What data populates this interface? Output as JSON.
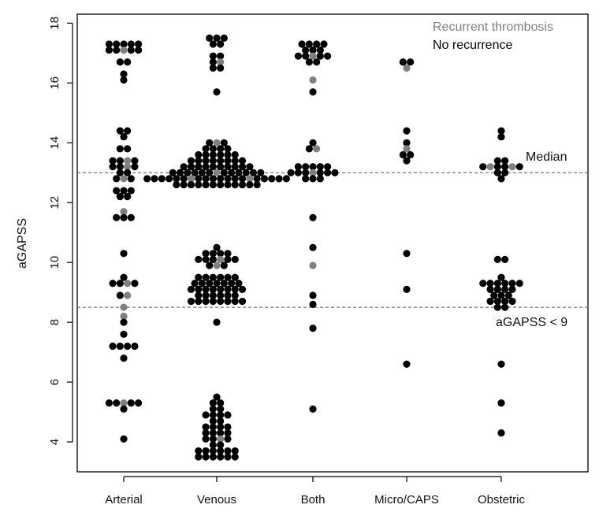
{
  "chart_data": {
    "type": "scatter",
    "subtype": "beeswarm",
    "ylabel": "aGAPSS",
    "xlabel": "",
    "ylim": [
      3,
      18.3
    ],
    "yticks": [
      4,
      6,
      8,
      10,
      12,
      14,
      16,
      18
    ],
    "categories": [
      "Arterial",
      "Venous",
      "Both",
      "Micro/CAPS",
      "Obstetric"
    ],
    "legend": {
      "position": "top-right",
      "entries": [
        {
          "label": "Recurrent thrombosis",
          "color": "#808080"
        },
        {
          "label": "No recurrence",
          "color": "#000000"
        }
      ]
    },
    "reference_lines": [
      {
        "y": 13.0,
        "label": "Median",
        "style": "dashed"
      },
      {
        "y": 8.5,
        "label": "aGAPSS < 9",
        "style": "dashed"
      }
    ],
    "series": [
      {
        "name": "Arterial",
        "points": [
          {
            "y": 17.3,
            "n_black": 5,
            "n_gray": 0
          },
          {
            "y": 17.1,
            "n_black": 4,
            "n_gray": 1
          },
          {
            "y": 16.7,
            "n_black": 2,
            "n_gray": 0
          },
          {
            "y": 16.3,
            "n_black": 1,
            "n_gray": 0
          },
          {
            "y": 16.1,
            "n_black": 1,
            "n_gray": 0
          },
          {
            "y": 14.4,
            "n_black": 2,
            "n_gray": 0
          },
          {
            "y": 14.2,
            "n_black": 1,
            "n_gray": 0
          },
          {
            "y": 13.8,
            "n_black": 2,
            "n_gray": 0
          },
          {
            "y": 13.4,
            "n_black": 3,
            "n_gray": 1
          },
          {
            "y": 13.2,
            "n_black": 3,
            "n_gray": 1
          },
          {
            "y": 13.0,
            "n_black": 2,
            "n_gray": 0
          },
          {
            "y": 12.8,
            "n_black": 2,
            "n_gray": 1
          },
          {
            "y": 12.4,
            "n_black": 3,
            "n_gray": 0
          },
          {
            "y": 12.2,
            "n_black": 2,
            "n_gray": 0
          },
          {
            "y": 11.7,
            "n_black": 0,
            "n_gray": 1
          },
          {
            "y": 11.5,
            "n_black": 3,
            "n_gray": 0
          },
          {
            "y": 10.3,
            "n_black": 1,
            "n_gray": 0
          },
          {
            "y": 9.5,
            "n_black": 1,
            "n_gray": 0
          },
          {
            "y": 9.3,
            "n_black": 3,
            "n_gray": 1
          },
          {
            "y": 8.9,
            "n_black": 1,
            "n_gray": 1
          },
          {
            "y": 8.5,
            "n_black": 0,
            "n_gray": 1
          },
          {
            "y": 8.2,
            "n_black": 0,
            "n_gray": 1
          },
          {
            "y": 8.0,
            "n_black": 1,
            "n_gray": 0
          },
          {
            "y": 7.6,
            "n_black": 1,
            "n_gray": 0
          },
          {
            "y": 7.2,
            "n_black": 4,
            "n_gray": 0
          },
          {
            "y": 6.8,
            "n_black": 1,
            "n_gray": 0
          },
          {
            "y": 5.3,
            "n_black": 4,
            "n_gray": 1
          },
          {
            "y": 5.1,
            "n_black": 1,
            "n_gray": 0
          },
          {
            "y": 4.1,
            "n_black": 1,
            "n_gray": 0
          }
        ]
      },
      {
        "name": "Venous",
        "points": [
          {
            "y": 17.5,
            "n_black": 3,
            "n_gray": 0
          },
          {
            "y": 17.3,
            "n_black": 2,
            "n_gray": 0
          },
          {
            "y": 16.9,
            "n_black": 2,
            "n_gray": 0
          },
          {
            "y": 16.7,
            "n_black": 1,
            "n_gray": 1
          },
          {
            "y": 16.5,
            "n_black": 2,
            "n_gray": 0
          },
          {
            "y": 15.7,
            "n_black": 1,
            "n_gray": 0
          },
          {
            "y": 14.0,
            "n_black": 2,
            "n_gray": 1
          },
          {
            "y": 13.8,
            "n_black": 4,
            "n_gray": 0
          },
          {
            "y": 13.6,
            "n_black": 6,
            "n_gray": 0
          },
          {
            "y": 13.4,
            "n_black": 8,
            "n_gray": 0
          },
          {
            "y": 13.2,
            "n_black": 10,
            "n_gray": 0
          },
          {
            "y": 13.0,
            "n_black": 12,
            "n_gray": 1
          },
          {
            "y": 12.8,
            "n_black": 18,
            "n_gray": 2
          },
          {
            "y": 12.6,
            "n_black": 12,
            "n_gray": 0
          },
          {
            "y": 10.5,
            "n_black": 1,
            "n_gray": 0
          },
          {
            "y": 10.3,
            "n_black": 4,
            "n_gray": 0
          },
          {
            "y": 10.1,
            "n_black": 5,
            "n_gray": 1
          },
          {
            "y": 9.9,
            "n_black": 2,
            "n_gray": 1
          },
          {
            "y": 9.5,
            "n_black": 6,
            "n_gray": 0
          },
          {
            "y": 9.3,
            "n_black": 7,
            "n_gray": 0
          },
          {
            "y": 9.1,
            "n_black": 8,
            "n_gray": 0
          },
          {
            "y": 8.9,
            "n_black": 6,
            "n_gray": 0
          },
          {
            "y": 8.7,
            "n_black": 8,
            "n_gray": 0
          },
          {
            "y": 8.0,
            "n_black": 1,
            "n_gray": 0
          },
          {
            "y": 5.5,
            "n_black": 1,
            "n_gray": 0
          },
          {
            "y": 5.3,
            "n_black": 2,
            "n_gray": 0
          },
          {
            "y": 5.1,
            "n_black": 2,
            "n_gray": 0
          },
          {
            "y": 4.9,
            "n_black": 4,
            "n_gray": 0
          },
          {
            "y": 4.7,
            "n_black": 2,
            "n_gray": 0
          },
          {
            "y": 4.5,
            "n_black": 4,
            "n_gray": 0
          },
          {
            "y": 4.3,
            "n_black": 4,
            "n_gray": 0
          },
          {
            "y": 4.1,
            "n_black": 3,
            "n_gray": 1
          },
          {
            "y": 3.9,
            "n_black": 2,
            "n_gray": 0
          },
          {
            "y": 3.7,
            "n_black": 6,
            "n_gray": 0
          },
          {
            "y": 3.5,
            "n_black": 6,
            "n_gray": 0
          }
        ]
      },
      {
        "name": "Both",
        "points": [
          {
            "y": 17.3,
            "n_black": 4,
            "n_gray": 0
          },
          {
            "y": 17.1,
            "n_black": 3,
            "n_gray": 0
          },
          {
            "y": 16.9,
            "n_black": 4,
            "n_gray": 1
          },
          {
            "y": 16.7,
            "n_black": 2,
            "n_gray": 0
          },
          {
            "y": 16.1,
            "n_black": 0,
            "n_gray": 1
          },
          {
            "y": 15.7,
            "n_black": 1,
            "n_gray": 0
          },
          {
            "y": 14.0,
            "n_black": 1,
            "n_gray": 0
          },
          {
            "y": 13.8,
            "n_black": 1,
            "n_gray": 1
          },
          {
            "y": 13.2,
            "n_black": 5,
            "n_gray": 0
          },
          {
            "y": 13.0,
            "n_black": 6,
            "n_gray": 1
          },
          {
            "y": 12.8,
            "n_black": 3,
            "n_gray": 0
          },
          {
            "y": 11.5,
            "n_black": 1,
            "n_gray": 0
          },
          {
            "y": 10.5,
            "n_black": 1,
            "n_gray": 0
          },
          {
            "y": 9.9,
            "n_black": 0,
            "n_gray": 1
          },
          {
            "y": 8.9,
            "n_black": 1,
            "n_gray": 0
          },
          {
            "y": 8.6,
            "n_black": 1,
            "n_gray": 0
          },
          {
            "y": 7.8,
            "n_black": 1,
            "n_gray": 0
          },
          {
            "y": 5.1,
            "n_black": 1,
            "n_gray": 0
          }
        ]
      },
      {
        "name": "Micro/CAPS",
        "points": [
          {
            "y": 16.7,
            "n_black": 2,
            "n_gray": 0
          },
          {
            "y": 16.5,
            "n_black": 0,
            "n_gray": 1
          },
          {
            "y": 14.4,
            "n_black": 1,
            "n_gray": 0
          },
          {
            "y": 14.0,
            "n_black": 1,
            "n_gray": 0
          },
          {
            "y": 13.8,
            "n_black": 0,
            "n_gray": 1
          },
          {
            "y": 13.6,
            "n_black": 2,
            "n_gray": 0
          },
          {
            "y": 13.4,
            "n_black": 1,
            "n_gray": 0
          },
          {
            "y": 10.3,
            "n_black": 1,
            "n_gray": 0
          },
          {
            "y": 9.1,
            "n_black": 1,
            "n_gray": 0
          },
          {
            "y": 6.6,
            "n_black": 1,
            "n_gray": 0
          }
        ]
      },
      {
        "name": "Obstetric",
        "points": [
          {
            "y": 14.4,
            "n_black": 1,
            "n_gray": 0
          },
          {
            "y": 14.2,
            "n_black": 1,
            "n_gray": 0
          },
          {
            "y": 13.4,
            "n_black": 2,
            "n_gray": 0
          },
          {
            "y": 13.2,
            "n_black": 4,
            "n_gray": 2
          },
          {
            "y": 13.0,
            "n_black": 2,
            "n_gray": 0
          },
          {
            "y": 12.8,
            "n_black": 1,
            "n_gray": 0
          },
          {
            "y": 10.1,
            "n_black": 2,
            "n_gray": 0
          },
          {
            "y": 9.5,
            "n_black": 1,
            "n_gray": 0
          },
          {
            "y": 9.3,
            "n_black": 6,
            "n_gray": 0
          },
          {
            "y": 9.1,
            "n_black": 4,
            "n_gray": 0
          },
          {
            "y": 8.9,
            "n_black": 3,
            "n_gray": 0
          },
          {
            "y": 8.7,
            "n_black": 4,
            "n_gray": 0
          },
          {
            "y": 8.5,
            "n_black": 2,
            "n_gray": 0
          },
          {
            "y": 6.6,
            "n_black": 1,
            "n_gray": 0
          },
          {
            "y": 5.3,
            "n_black": 1,
            "n_gray": 0
          },
          {
            "y": 4.3,
            "n_black": 1,
            "n_gray": 0
          }
        ]
      }
    ]
  }
}
